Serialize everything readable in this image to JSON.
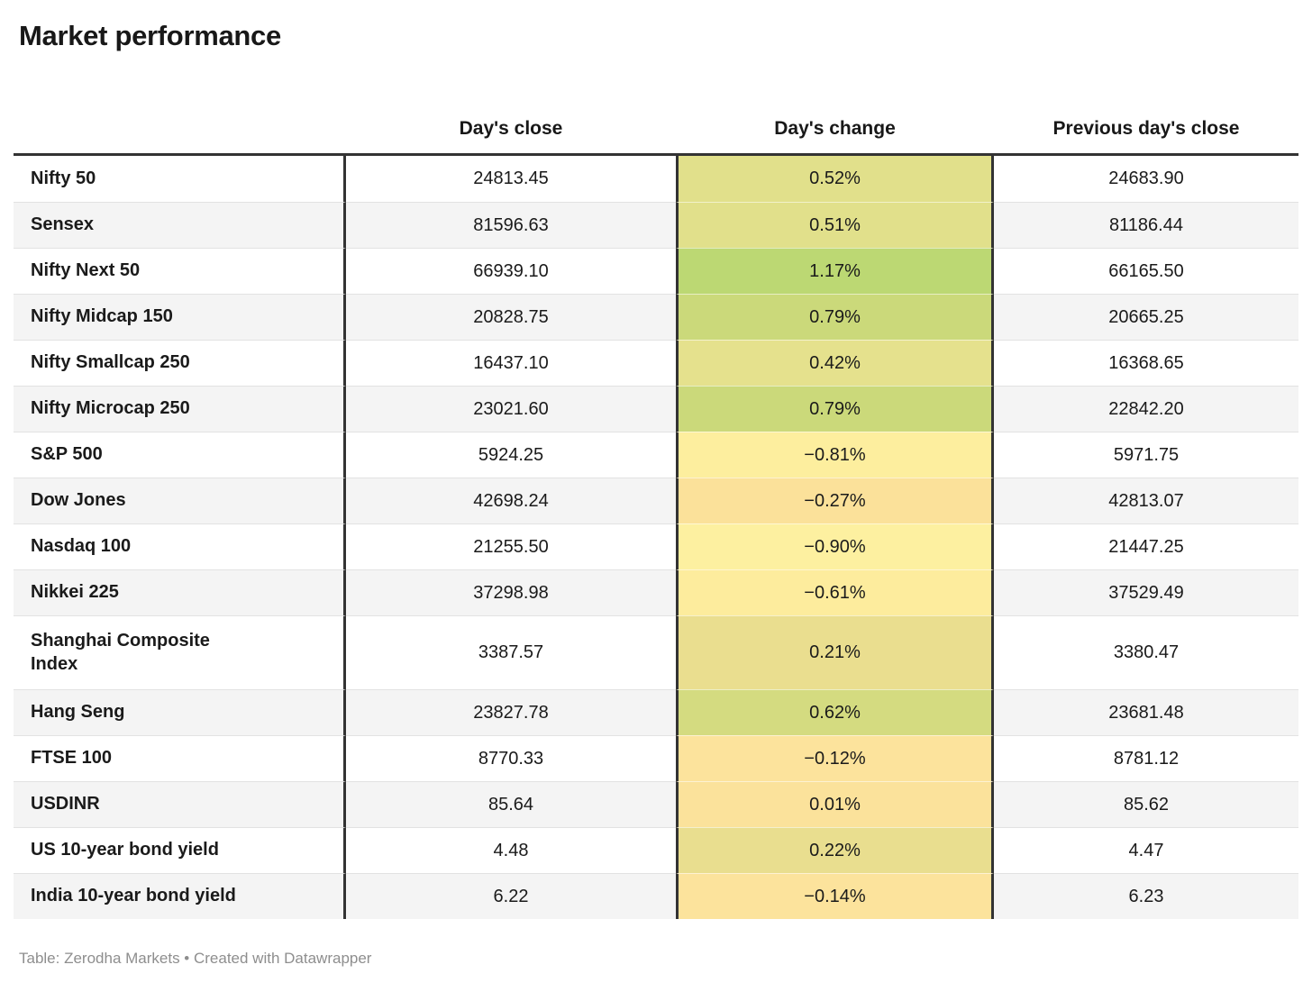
{
  "title": "Market performance",
  "table": {
    "columns": [
      "Day's close",
      "Day's change",
      "Previous day's close"
    ],
    "rows": [
      {
        "label": "Nifty 50",
        "close": "24813.45",
        "change": "0.52%",
        "prev": "24683.90",
        "color": "#e1e08b"
      },
      {
        "label": "Sensex",
        "close": "81596.63",
        "change": "0.51%",
        "prev": "81186.44",
        "color": "#e1e08b"
      },
      {
        "label": "Nifty Next 50",
        "close": "66939.10",
        "change": "1.17%",
        "prev": "66165.50",
        "color": "#bcd873"
      },
      {
        "label": "Nifty Midcap 150",
        "close": "20828.75",
        "change": "0.79%",
        "prev": "20665.25",
        "color": "#cbd97a"
      },
      {
        "label": "Nifty Smallcap 250",
        "close": "16437.10",
        "change": "0.42%",
        "prev": "16368.65",
        "color": "#e5e18d"
      },
      {
        "label": "Nifty Microcap 250",
        "close": "23021.60",
        "change": "0.79%",
        "prev": "22842.20",
        "color": "#cbd97a"
      },
      {
        "label": "S&P 500",
        "close": "5924.25",
        "change": "−0.81%",
        "prev": "5971.75",
        "color": "#fdee9e"
      },
      {
        "label": "Dow Jones",
        "close": "42698.24",
        "change": "−0.27%",
        "prev": "42813.07",
        "color": "#fbe19a"
      },
      {
        "label": "Nasdaq 100",
        "close": "21255.50",
        "change": "−0.90%",
        "prev": "21447.25",
        "color": "#fdf0a0"
      },
      {
        "label": "Nikkei 225",
        "close": "37298.98",
        "change": "−0.61%",
        "prev": "37529.49",
        "color": "#fdec9d"
      },
      {
        "label": "Shanghai Composite\nIndex",
        "close": "3387.57",
        "change": "0.21%",
        "prev": "3380.47",
        "color": "#eade8f"
      },
      {
        "label": "Hang Seng",
        "close": "23827.78",
        "change": "0.62%",
        "prev": "23681.48",
        "color": "#d4db80"
      },
      {
        "label": "FTSE 100",
        "close": "8770.33",
        "change": "−0.12%",
        "prev": "8781.12",
        "color": "#fce39c"
      },
      {
        "label": "USDINR",
        "close": "85.64",
        "change": "0.01%",
        "prev": "85.62",
        "color": "#fbe29b"
      },
      {
        "label": "US 10-year bond yield",
        "close": "4.48",
        "change": "0.22%",
        "prev": "4.47",
        "color": "#e9de8f"
      },
      {
        "label": "India 10-year bond yield",
        "close": "6.22",
        "change": "−0.14%",
        "prev": "6.23",
        "color": "#fce39c"
      }
    ]
  },
  "footer": {
    "text": "Table: Zerodha Markets • Created with Datawrapper"
  },
  "chart_data": {
    "type": "table",
    "title": "Market performance",
    "columns": [
      "Day's close",
      "Day's change",
      "Previous day's close"
    ],
    "rows": [
      {
        "name": "Nifty 50",
        "days_close": 24813.45,
        "days_change_pct": 0.52,
        "previous_close": 24683.9
      },
      {
        "name": "Sensex",
        "days_close": 81596.63,
        "days_change_pct": 0.51,
        "previous_close": 81186.44
      },
      {
        "name": "Nifty Next 50",
        "days_close": 66939.1,
        "days_change_pct": 1.17,
        "previous_close": 66165.5
      },
      {
        "name": "Nifty Midcap 150",
        "days_close": 20828.75,
        "days_change_pct": 0.79,
        "previous_close": 20665.25
      },
      {
        "name": "Nifty Smallcap 250",
        "days_close": 16437.1,
        "days_change_pct": 0.42,
        "previous_close": 16368.65
      },
      {
        "name": "Nifty Microcap 250",
        "days_close": 23021.6,
        "days_change_pct": 0.79,
        "previous_close": 22842.2
      },
      {
        "name": "S&P 500",
        "days_close": 5924.25,
        "days_change_pct": -0.81,
        "previous_close": 5971.75
      },
      {
        "name": "Dow Jones",
        "days_close": 42698.24,
        "days_change_pct": -0.27,
        "previous_close": 42813.07
      },
      {
        "name": "Nasdaq 100",
        "days_close": 21255.5,
        "days_change_pct": -0.9,
        "previous_close": 21447.25
      },
      {
        "name": "Nikkei 225",
        "days_close": 37298.98,
        "days_change_pct": -0.61,
        "previous_close": 37529.49
      },
      {
        "name": "Shanghai Composite Index",
        "days_close": 3387.57,
        "days_change_pct": 0.21,
        "previous_close": 3380.47
      },
      {
        "name": "Hang Seng",
        "days_close": 23827.78,
        "days_change_pct": 0.62,
        "previous_close": 23681.48
      },
      {
        "name": "FTSE 100",
        "days_close": 8770.33,
        "days_change_pct": -0.12,
        "previous_close": 8781.12
      },
      {
        "name": "USDINR",
        "days_close": 85.64,
        "days_change_pct": 0.01,
        "previous_close": 85.62
      },
      {
        "name": "US 10-year bond yield",
        "days_close": 4.48,
        "days_change_pct": 0.22,
        "previous_close": 4.47
      },
      {
        "name": "India 10-year bond yield",
        "days_close": 6.22,
        "days_change_pct": -0.14,
        "previous_close": 6.23
      }
    ],
    "layout": {
      "change_column_heatmap": {
        "positive_high_color": "#bcd873",
        "near_zero_color": "#fce39c",
        "negative_low_color": "#fdf0a0"
      },
      "alternating_row_background": "#f4f4f4"
    }
  }
}
